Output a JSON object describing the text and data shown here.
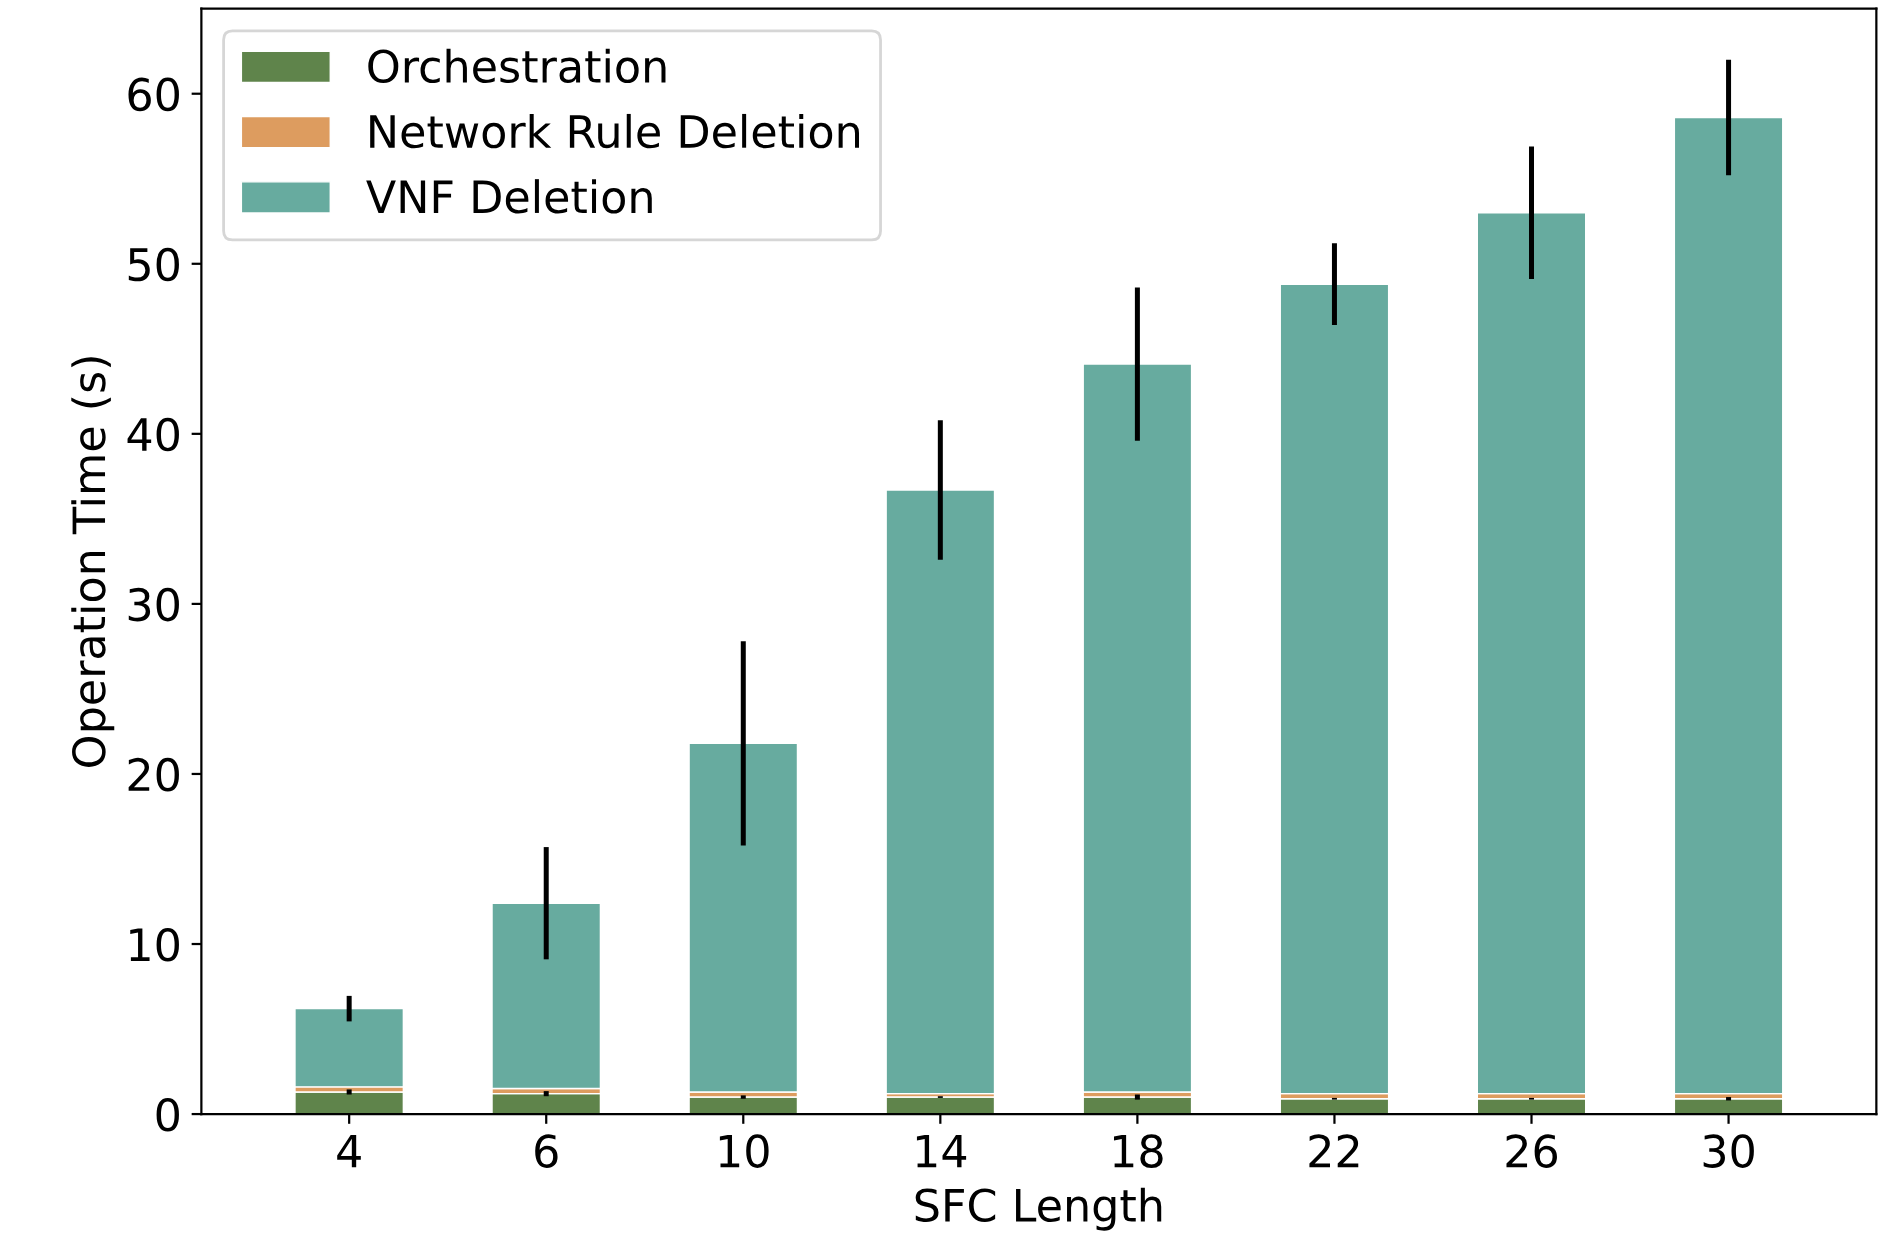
{
  "chart_data": {
    "type": "bar",
    "stacked": true,
    "xlabel": "SFC Length",
    "ylabel": "Operation Time (s)",
    "categories": [
      "4",
      "6",
      "10",
      "14",
      "18",
      "22",
      "26",
      "30"
    ],
    "series": [
      {
        "name": "Orchestration",
        "color": "#5f844b",
        "values": [
          1.3,
          1.2,
          1.0,
          1.0,
          1.0,
          0.9,
          0.9,
          0.9
        ],
        "errors": [
          0.15,
          0.15,
          0.1,
          0.05,
          0.15,
          0.05,
          0.05,
          0.1
        ]
      },
      {
        "name": "Network Rule Deletion",
        "color": "#dd9c5f",
        "values": [
          0.3,
          0.3,
          0.3,
          0.2,
          0.3,
          0.3,
          0.3,
          0.3
        ]
      },
      {
        "name": "VNF Deletion",
        "color": "#67ab9f",
        "values": [
          4.6,
          10.9,
          20.5,
          35.5,
          42.8,
          47.6,
          51.8,
          57.4
        ],
        "errors": [
          0.75,
          3.3,
          6,
          4.1,
          4.5,
          2.4,
          3.9,
          3.4
        ]
      }
    ],
    "ylim": [
      0,
      65
    ],
    "yticks": [
      0,
      10,
      20,
      30,
      40,
      50,
      60
    ],
    "grid": false,
    "legend": "top left"
  }
}
